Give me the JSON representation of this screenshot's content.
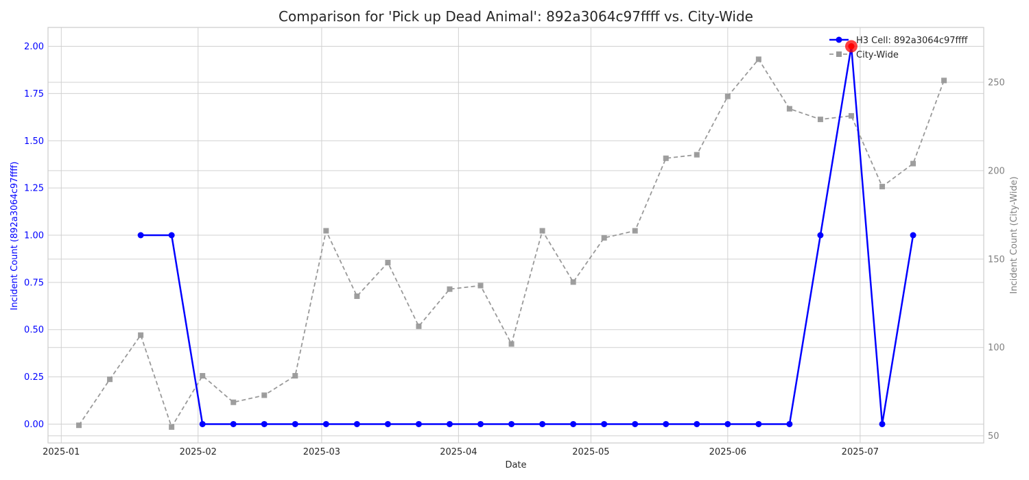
{
  "chart_data": {
    "type": "line",
    "title": "Comparison for 'Pick up Dead Animal': 892a3064c97ffff vs. City-Wide",
    "xlabel": "Date",
    "ylabel_left": "Incident Count (892a3064c97ffff)",
    "ylabel_right": "Incident Count (City-Wide)",
    "x_ticks": [
      "2025-01",
      "2025-02",
      "2025-03",
      "2025-04",
      "2025-05",
      "2025-06",
      "2025-07"
    ],
    "y_left_ticks": [
      "0.00",
      "0.25",
      "0.50",
      "0.75",
      "1.00",
      "1.25",
      "1.50",
      "1.75",
      "2.00"
    ],
    "y_right_ticks": [
      "50",
      "100",
      "150",
      "200",
      "250"
    ],
    "y_left_lim": [
      -0.1,
      2.1
    ],
    "y_right_lim": [
      46,
      281
    ],
    "grid": true,
    "legend_position": "top-right",
    "colors": {
      "cell_series": "#0000ff",
      "city_series": "#999999",
      "highlight": "#ff0000",
      "grid": "#d0d0d0",
      "spine": "#cccccc"
    },
    "series": [
      {
        "name": "H3 Cell: 892a3064c97ffff",
        "axis": "left",
        "style": "solid-circle",
        "x": [
          "2025-01-19",
          "2025-01-26",
          "2025-02-02",
          "2025-02-09",
          "2025-02-16",
          "2025-02-23",
          "2025-03-02",
          "2025-03-09",
          "2025-03-16",
          "2025-03-23",
          "2025-03-30",
          "2025-04-06",
          "2025-04-13",
          "2025-04-20",
          "2025-04-27",
          "2025-05-04",
          "2025-05-11",
          "2025-05-18",
          "2025-05-25",
          "2025-06-01",
          "2025-06-08",
          "2025-06-15",
          "2025-06-22",
          "2025-06-29",
          "2025-07-06",
          "2025-07-13"
        ],
        "values": [
          1,
          1,
          0,
          0,
          0,
          0,
          0,
          0,
          0,
          0,
          0,
          0,
          0,
          0,
          0,
          0,
          0,
          0,
          0,
          0,
          0,
          0,
          1,
          2,
          0,
          1
        ]
      },
      {
        "name": "City-Wide",
        "axis": "right",
        "style": "dashed-square",
        "x": [
          "2025-01-05",
          "2025-01-12",
          "2025-01-19",
          "2025-01-26",
          "2025-02-02",
          "2025-02-09",
          "2025-02-16",
          "2025-02-23",
          "2025-03-02",
          "2025-03-09",
          "2025-03-16",
          "2025-03-23",
          "2025-03-30",
          "2025-04-06",
          "2025-04-13",
          "2025-04-20",
          "2025-04-27",
          "2025-05-04",
          "2025-05-11",
          "2025-05-18",
          "2025-05-25",
          "2025-06-01",
          "2025-06-08",
          "2025-06-15",
          "2025-06-22",
          "2025-06-29",
          "2025-07-06",
          "2025-07-13",
          "2025-07-20"
        ],
        "values": [
          56,
          82,
          107,
          55,
          84,
          69,
          73,
          84,
          166,
          129,
          148,
          112,
          133,
          135,
          102,
          166,
          137,
          162,
          166,
          207,
          209,
          242,
          263,
          235,
          229,
          231,
          191,
          204,
          251
        ]
      }
    ],
    "highlight": {
      "series": "H3 Cell: 892a3064c97ffff",
      "x": "2025-06-29",
      "value": 2
    }
  }
}
